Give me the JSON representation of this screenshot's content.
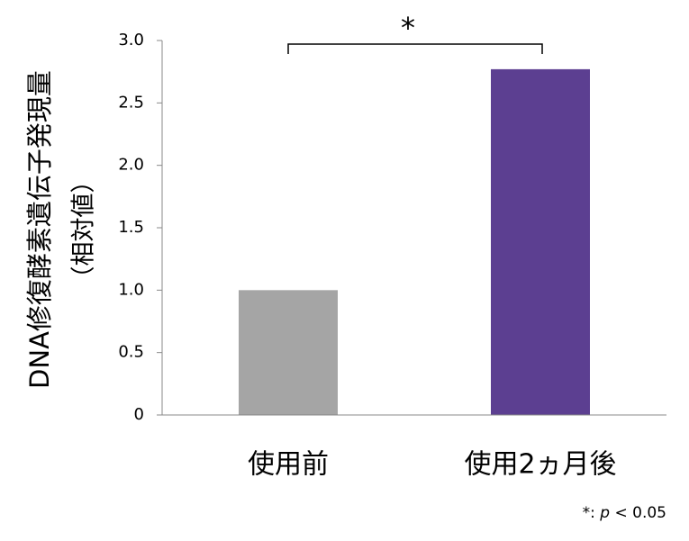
{
  "chart_data": {
    "type": "bar",
    "ylabel": [
      "DNA修復酵素遺伝子発現量",
      "（相対値）"
    ],
    "categories": [
      "使用前",
      "使用2ヵ月後"
    ],
    "values": [
      1.0,
      2.77
    ],
    "colors": [
      "#a5a5a5",
      "#5c3f91"
    ],
    "ylim": [
      0,
      3
    ],
    "yticks": [
      0,
      0.5,
      {
        "value": 1,
        "label": "1.0"
      },
      1.5,
      {
        "value": 2,
        "label": "2.0"
      },
      2.5,
      {
        "value": 3,
        "label": "3.0"
      }
    ],
    "annotation": "*",
    "footnote": [
      "*:",
      "p",
      "< 0.05"
    ]
  }
}
